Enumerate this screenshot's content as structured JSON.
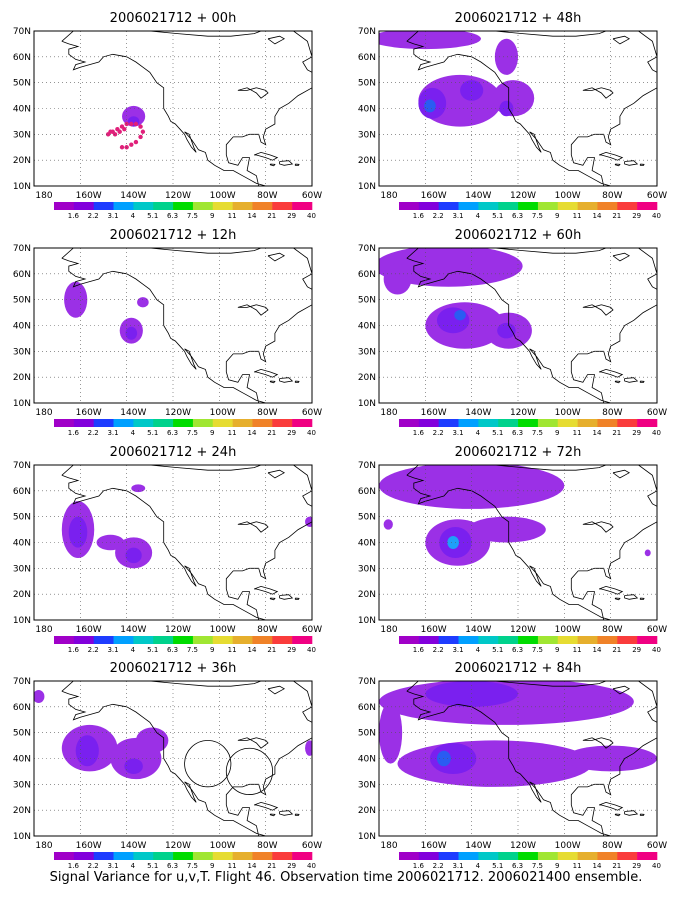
{
  "footer_caption": "Signal Variance for u,v,T. Flight 46. Observation time 2006021712. 2006021400 ensemble.",
  "axes": {
    "x_ticks": [
      "180",
      "160W",
      "140W",
      "120W",
      "100W",
      "80W",
      "60W"
    ],
    "y_ticks": [
      "10N",
      "20N",
      "30N",
      "40N",
      "50N",
      "60N",
      "70N"
    ],
    "lon_range": [
      -180,
      -60
    ],
    "lat_range": [
      10,
      70
    ],
    "grid": "dotted"
  },
  "colorbar": {
    "labels": [
      "1.6",
      "2.2",
      "3.1",
      "4",
      "5.1",
      "6.3",
      "7.5",
      "9",
      "11",
      "14",
      "21",
      "29",
      "40"
    ],
    "colors": [
      "#a000c8",
      "#8200dc",
      "#1e3cff",
      "#00a0ff",
      "#00c8c8",
      "#00d28c",
      "#00dc00",
      "#a0e632",
      "#e6dc32",
      "#e6af2d",
      "#f08228",
      "#fa3c3c",
      "#f00082"
    ]
  },
  "chart_data": [
    {
      "type": "heatmap",
      "title": "2006021712 + 00h",
      "panel": "left-1",
      "blobs": [
        {
          "lon": -137,
          "lat": 37,
          "rx": 5,
          "ry": 4,
          "level": 0
        },
        {
          "lon": -137,
          "lat": 35,
          "rx": 2.5,
          "ry": 2,
          "level": 1
        }
      ],
      "dots": [
        [
          -148,
          30
        ],
        [
          -146,
          31
        ],
        [
          -144,
          32
        ],
        [
          -142,
          33
        ],
        [
          -140,
          34
        ],
        [
          -138,
          34
        ],
        [
          -136,
          34
        ],
        [
          -134,
          33
        ],
        [
          -133,
          31
        ],
        [
          -134,
          29
        ],
        [
          -136,
          27
        ],
        [
          -138,
          26
        ],
        [
          -140,
          25
        ],
        [
          -142,
          25
        ],
        [
          -145,
          30
        ],
        [
          -147,
          31
        ],
        [
          -143,
          31
        ],
        [
          -141,
          32
        ]
      ]
    },
    {
      "type": "heatmap",
      "title": "2006021712 + 12h",
      "panel": "left-2",
      "blobs": [
        {
          "lon": -162,
          "lat": 50,
          "rx": 5,
          "ry": 7,
          "level": 0
        },
        {
          "lon": -138,
          "lat": 38,
          "rx": 5,
          "ry": 5,
          "level": 0
        },
        {
          "lon": -138,
          "lat": 37,
          "rx": 2.5,
          "ry": 2.5,
          "level": 1
        },
        {
          "lon": -133,
          "lat": 49,
          "rx": 2.5,
          "ry": 2,
          "level": 0
        }
      ]
    },
    {
      "type": "heatmap",
      "title": "2006021712 + 24h",
      "panel": "left-3",
      "blobs": [
        {
          "lon": -161,
          "lat": 45,
          "rx": 7,
          "ry": 11,
          "level": 0
        },
        {
          "lon": -161,
          "lat": 44,
          "rx": 4,
          "ry": 6,
          "level": 1
        },
        {
          "lon": -137,
          "lat": 36,
          "rx": 8,
          "ry": 6,
          "level": 0
        },
        {
          "lon": -137,
          "lat": 35,
          "rx": 3.5,
          "ry": 3,
          "level": 1
        },
        {
          "lon": -147,
          "lat": 40,
          "rx": 6,
          "ry": 3,
          "level": 0
        },
        {
          "lon": -135,
          "lat": 61,
          "rx": 3,
          "ry": 1.5,
          "level": 0
        },
        {
          "lon": -61,
          "lat": 48,
          "rx": 2,
          "ry": 2,
          "level": 0
        }
      ]
    },
    {
      "type": "heatmap",
      "title": "2006021712 + 36h",
      "panel": "left-4",
      "blobs": [
        {
          "lon": -156,
          "lat": 44,
          "rx": 12,
          "ry": 9,
          "level": 0
        },
        {
          "lon": -157,
          "lat": 43,
          "rx": 5,
          "ry": 6,
          "level": 1
        },
        {
          "lon": -136,
          "lat": 40,
          "rx": 11,
          "ry": 8,
          "level": 0
        },
        {
          "lon": -137,
          "lat": 37,
          "rx": 4,
          "ry": 3,
          "level": 1
        },
        {
          "lon": -129,
          "lat": 47,
          "rx": 7,
          "ry": 5,
          "level": 0
        },
        {
          "lon": -178,
          "lat": 64,
          "rx": 2.5,
          "ry": 2.5,
          "level": 0
        },
        {
          "lon": -61,
          "lat": 44,
          "rx": 2,
          "ry": 3,
          "level": 0
        }
      ],
      "circles": [
        {
          "lon": -105,
          "lat": 38,
          "r": 10
        },
        {
          "lon": -87,
          "lat": 35,
          "r": 10
        }
      ]
    },
    {
      "type": "heatmap",
      "title": "2006021712 + 48h",
      "panel": "right-1",
      "blobs": [
        {
          "lon": -160,
          "lat": 67,
          "rx": 24,
          "ry": 4,
          "level": 0
        },
        {
          "lon": -145,
          "lat": 43,
          "rx": 18,
          "ry": 10,
          "level": 0
        },
        {
          "lon": -157,
          "lat": 42,
          "rx": 6,
          "ry": 6,
          "level": 1
        },
        {
          "lon": -158,
          "lat": 41,
          "rx": 2.5,
          "ry": 2.5,
          "level": 2
        },
        {
          "lon": -140,
          "lat": 47,
          "rx": 5,
          "ry": 4,
          "level": 1
        },
        {
          "lon": -122,
          "lat": 44,
          "rx": 9,
          "ry": 7,
          "level": 0
        },
        {
          "lon": -125,
          "lat": 40,
          "rx": 3,
          "ry": 3,
          "level": 1
        },
        {
          "lon": -125,
          "lat": 60,
          "rx": 5,
          "ry": 7,
          "level": 0
        }
      ]
    },
    {
      "type": "heatmap",
      "title": "2006021712 + 60h",
      "panel": "right-2",
      "blobs": [
        {
          "lon": -150,
          "lat": 63,
          "rx": 32,
          "ry": 8,
          "level": 0
        },
        {
          "lon": -143,
          "lat": 40,
          "rx": 17,
          "ry": 9,
          "level": 0
        },
        {
          "lon": -148,
          "lat": 42,
          "rx": 7,
          "ry": 5,
          "level": 1
        },
        {
          "lon": -145,
          "lat": 44,
          "rx": 2.5,
          "ry": 2,
          "level": 2
        },
        {
          "lon": -124,
          "lat": 38,
          "rx": 10,
          "ry": 7,
          "level": 0
        },
        {
          "lon": -125,
          "lat": 38,
          "rx": 4,
          "ry": 3,
          "level": 1
        },
        {
          "lon": -172,
          "lat": 58,
          "rx": 6,
          "ry": 6,
          "level": 0
        }
      ]
    },
    {
      "type": "heatmap",
      "title": "2006021712 + 72h",
      "panel": "right-3",
      "blobs": [
        {
          "lon": -140,
          "lat": 62,
          "rx": 40,
          "ry": 9,
          "level": 0
        },
        {
          "lon": -146,
          "lat": 40,
          "rx": 14,
          "ry": 9,
          "level": 0
        },
        {
          "lon": -147,
          "lat": 40,
          "rx": 7,
          "ry": 6,
          "level": 1
        },
        {
          "lon": -148,
          "lat": 40,
          "rx": 2.5,
          "ry": 2.5,
          "level": 3
        },
        {
          "lon": -125,
          "lat": 45,
          "rx": 17,
          "ry": 5,
          "level": 0
        },
        {
          "lon": -176,
          "lat": 47,
          "rx": 2,
          "ry": 2,
          "level": 0
        },
        {
          "lon": -64,
          "lat": 36,
          "rx": 1.3,
          "ry": 1.3,
          "level": 0
        }
      ]
    },
    {
      "type": "heatmap",
      "title": "2006021712 + 84h",
      "panel": "right-4",
      "blobs": [
        {
          "lon": -125,
          "lat": 62,
          "rx": 55,
          "ry": 9,
          "level": 0
        },
        {
          "lon": -140,
          "lat": 65,
          "rx": 20,
          "ry": 5,
          "level": 1
        },
        {
          "lon": -130,
          "lat": 38,
          "rx": 42,
          "ry": 9,
          "level": 0
        },
        {
          "lon": -148,
          "lat": 40,
          "rx": 10,
          "ry": 6,
          "level": 1
        },
        {
          "lon": -152,
          "lat": 40,
          "rx": 3,
          "ry": 3,
          "level": 2
        },
        {
          "lon": -80,
          "lat": 40,
          "rx": 20,
          "ry": 5,
          "level": 0
        },
        {
          "lon": -175,
          "lat": 50,
          "rx": 5,
          "ry": 12,
          "level": 0
        }
      ]
    }
  ]
}
